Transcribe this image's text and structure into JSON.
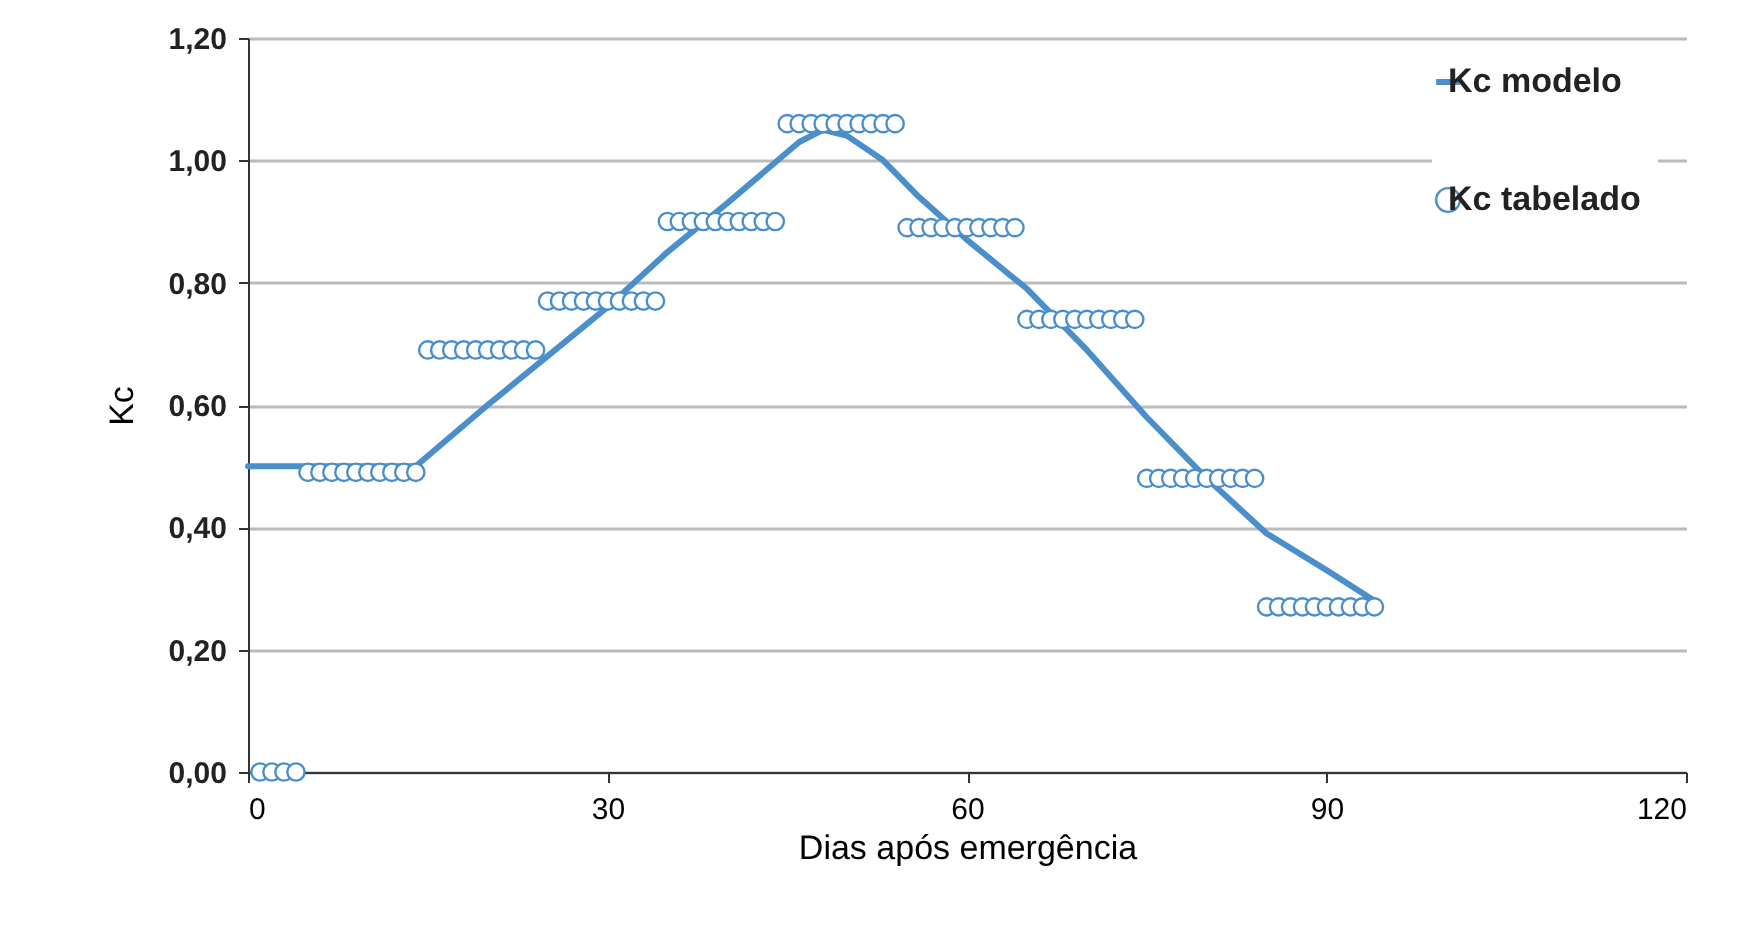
{
  "chart_data": {
    "type": "scatter",
    "xlabel": "Dias após emergência",
    "ylabel": "Kc",
    "xlim": [
      0,
      120
    ],
    "xticks": [
      0,
      30,
      60,
      90,
      120
    ],
    "ylim": [
      0,
      1.2
    ],
    "yticks": [
      {
        "value": 0,
        "label": "0,00"
      },
      {
        "value": 0.2,
        "label": "0,20"
      },
      {
        "value": 0.4,
        "label": "0,40"
      },
      {
        "value": 0.6,
        "label": "0,60"
      },
      {
        "value": 0.8,
        "label": "0,80"
      },
      {
        "value": 1.0,
        "label": "1,00"
      },
      {
        "value": 1.2,
        "label": "1,20"
      }
    ],
    "grid": "y",
    "legend": "top right",
    "series": [
      {
        "name": "Kc modelo",
        "type": "line",
        "color": "#4a8fcb",
        "x": [
          0,
          14,
          20,
          25,
          30,
          35,
          40,
          43,
          46,
          48,
          50,
          53,
          56,
          60,
          65,
          70,
          75,
          80,
          85,
          90,
          94
        ],
        "values": [
          0.5,
          0.5,
          0.6,
          0.68,
          0.76,
          0.85,
          0.93,
          0.98,
          1.03,
          1.05,
          1.04,
          1.0,
          0.94,
          0.87,
          0.79,
          0.69,
          0.58,
          0.48,
          0.39,
          0.33,
          0.28
        ]
      },
      {
        "name": "Kc tabelado",
        "marker": "circle",
        "color": "#4a8fcb",
        "x": [
          1,
          2,
          3,
          4,
          5,
          6,
          7,
          8,
          9,
          10,
          11,
          12,
          13,
          14,
          15,
          16,
          17,
          18,
          19,
          20,
          21,
          22,
          23,
          24,
          25,
          26,
          27,
          28,
          29,
          30,
          31,
          32,
          33,
          34,
          35,
          36,
          37,
          38,
          39,
          40,
          41,
          42,
          43,
          44,
          45,
          46,
          47,
          48,
          49,
          50,
          51,
          52,
          53,
          54,
          55,
          56,
          57,
          58,
          59,
          60,
          61,
          62,
          63,
          64,
          65,
          66,
          67,
          68,
          69,
          70,
          71,
          72,
          73,
          74,
          75,
          76,
          77,
          78,
          79,
          80,
          81,
          82,
          83,
          84,
          85,
          86,
          87,
          88,
          89,
          90,
          91,
          92,
          93,
          94
        ],
        "values": [
          0,
          0,
          0,
          0,
          0.49,
          0.49,
          0.49,
          0.49,
          0.49,
          0.49,
          0.49,
          0.49,
          0.49,
          0.49,
          0.69,
          0.69,
          0.69,
          0.69,
          0.69,
          0.69,
          0.69,
          0.69,
          0.69,
          0.69,
          0.77,
          0.77,
          0.77,
          0.77,
          0.77,
          0.77,
          0.77,
          0.77,
          0.77,
          0.77,
          0.9,
          0.9,
          0.9,
          0.9,
          0.9,
          0.9,
          0.9,
          0.9,
          0.9,
          0.9,
          1.06,
          1.06,
          1.06,
          1.06,
          1.06,
          1.06,
          1.06,
          1.06,
          1.06,
          1.06,
          0.89,
          0.89,
          0.89,
          0.89,
          0.89,
          0.89,
          0.89,
          0.89,
          0.89,
          0.89,
          0.74,
          0.74,
          0.74,
          0.74,
          0.74,
          0.74,
          0.74,
          0.74,
          0.74,
          0.74,
          0.48,
          0.48,
          0.48,
          0.48,
          0.48,
          0.48,
          0.48,
          0.48,
          0.48,
          0.48,
          0.27,
          0.27,
          0.27,
          0.27,
          0.27,
          0.27,
          0.27,
          0.27,
          0.27,
          0.27
        ]
      }
    ]
  }
}
